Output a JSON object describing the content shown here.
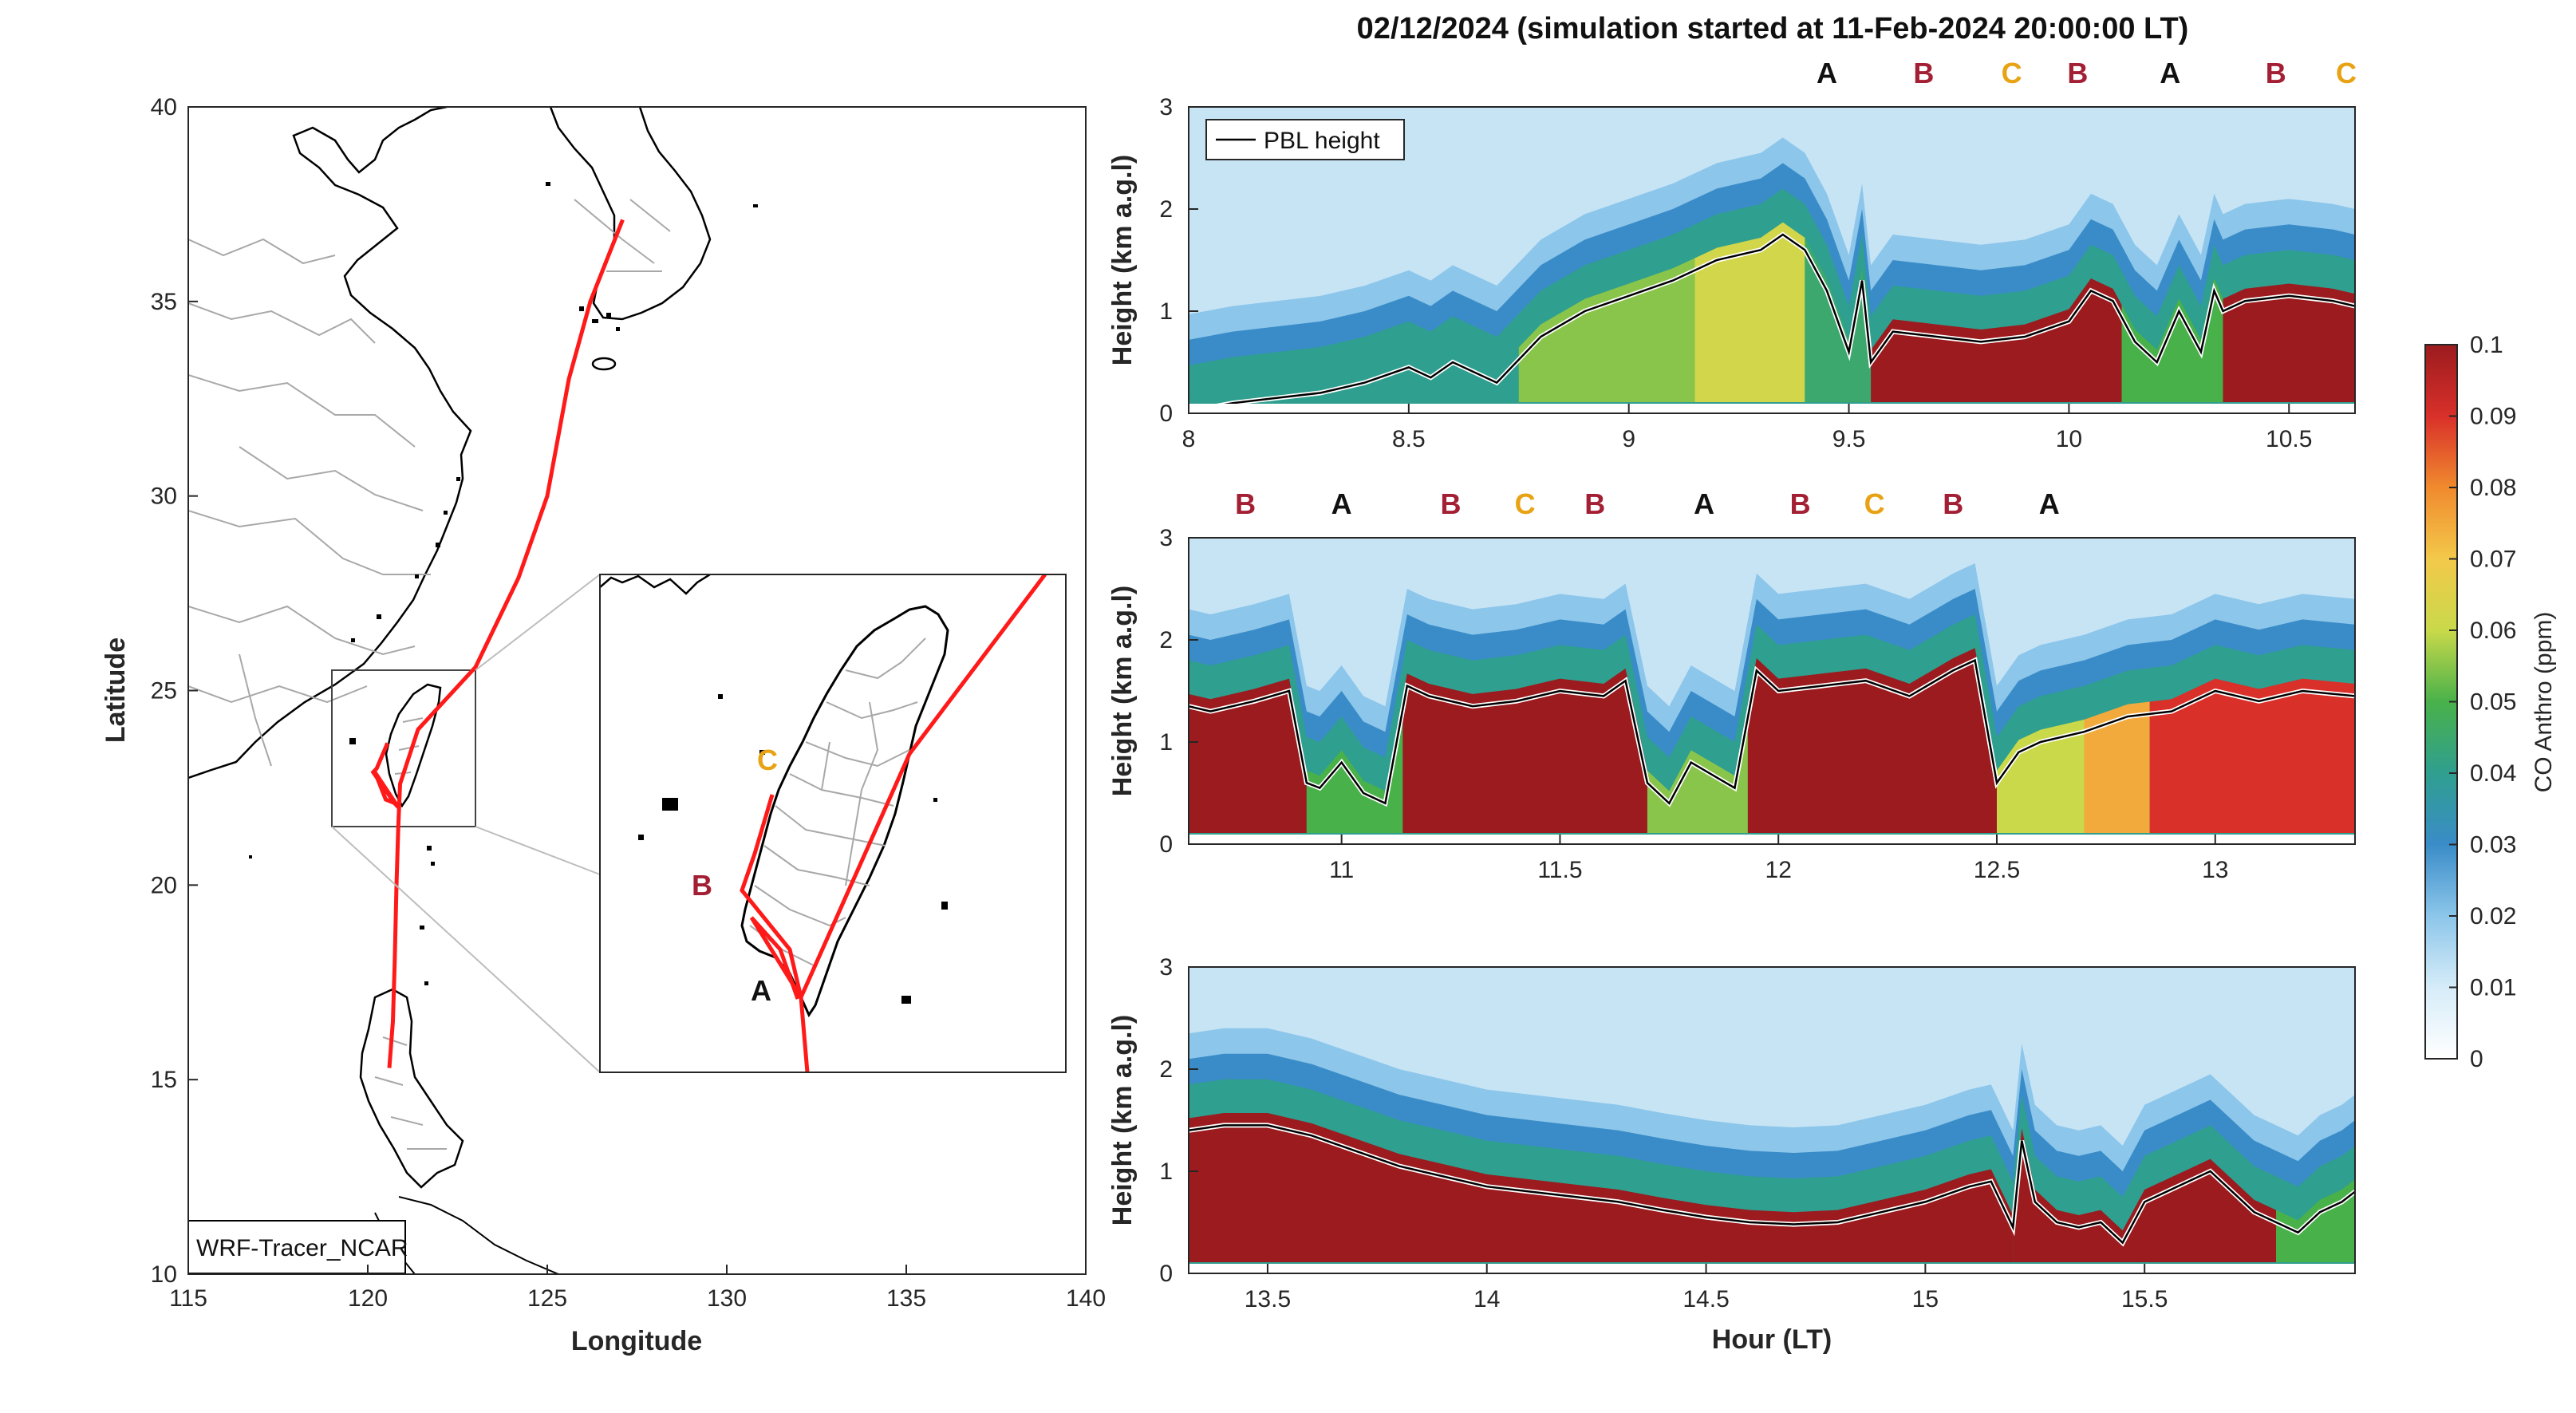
{
  "title": "02/12/2024 (simulation started at 11-Feb-2024 20:00:00 LT)",
  "colors": {
    "A": "#111111",
    "B": "#a31f34",
    "C": "#e8a315",
    "track": "#ff1a1a",
    "coast": "#000000",
    "border": "#a8a8a8"
  },
  "chart_data": [
    {
      "type": "map",
      "name": "trajectory-map",
      "xlabel": "Longitude",
      "ylabel": "Latitude",
      "xlim": [
        115,
        140
      ],
      "ylim": [
        10,
        40
      ],
      "xticks": [
        "115",
        "120",
        "125",
        "130",
        "135",
        "140"
      ],
      "yticks": [
        "10",
        "15",
        "20",
        "25",
        "30",
        "35",
        "40"
      ],
      "source_label": "WRF-Tracer_NCAR",
      "track": {
        "lon": [
          127.1,
          126.2,
          125.6,
          125.0,
          124.2,
          123.0,
          121.4,
          120.9,
          120.85,
          120.8,
          120.75,
          120.7,
          120.6
        ],
        "lat": [
          37.1,
          35.0,
          33.0,
          30.0,
          27.9,
          25.6,
          24.0,
          22.6,
          21.5,
          20.0,
          18.0,
          16.5,
          15.3
        ]
      },
      "inset": {
        "bounds": {
          "lon": [
            119,
            123
          ],
          "lat": [
            21.5,
            25.6
          ]
        },
        "track": {
          "lon": [
            123.0,
            121.4,
            120.9,
            120.85
          ],
          "lat": [
            25.6,
            24.0,
            22.6,
            21.5
          ]
        },
        "local_track": {
          "lon": [
            120.55,
            120.25,
            120.15,
            120.75,
            120.85,
            120.2,
            120.5,
            120.9
          ],
          "lat": [
            23.65,
            23.0,
            22.9,
            22.1,
            22.0,
            22.9,
            22.2,
            22.05
          ]
        },
        "markers": [
          {
            "label": "C",
            "lon": 120.6,
            "lat": 23.65
          },
          {
            "label": "B",
            "lon": 119.85,
            "lat": 22.85
          },
          {
            "label": "A",
            "lon": 120.45,
            "lat": 22.2
          }
        ]
      }
    },
    {
      "type": "heatmap",
      "name": "co-curtain-1",
      "xlabel": "",
      "ylabel": "Height (km a.g.l)",
      "xlim": [
        8,
        10.65
      ],
      "ylim": [
        0,
        3
      ],
      "xticks": [
        "8",
        "8.5",
        "9",
        "9.5",
        "10",
        "10.5"
      ],
      "yticks": [
        "0",
        "1",
        "2",
        "3"
      ],
      "legend": "PBL height",
      "markers": [
        {
          "label": "A",
          "x": 9.45
        },
        {
          "label": "B",
          "x": 9.67
        },
        {
          "label": "C",
          "x": 9.87
        },
        {
          "label": "B",
          "x": 10.02
        },
        {
          "label": "A",
          "x": 10.23
        },
        {
          "label": "B",
          "x": 10.47
        },
        {
          "label": "C",
          "x": 10.63
        }
      ],
      "pbl": {
        "x": [
          8.0,
          8.1,
          8.2,
          8.3,
          8.4,
          8.5,
          8.55,
          8.6,
          8.7,
          8.8,
          8.9,
          9.0,
          9.1,
          9.2,
          9.3,
          9.35,
          9.4,
          9.45,
          9.5,
          9.53,
          9.55,
          9.6,
          9.7,
          9.8,
          9.9,
          10.0,
          10.05,
          10.1,
          10.15,
          10.2,
          10.25,
          10.3,
          10.33,
          10.35,
          10.4,
          10.5,
          10.6,
          10.65
        ],
        "y": [
          0.02,
          0.1,
          0.15,
          0.2,
          0.3,
          0.45,
          0.35,
          0.5,
          0.3,
          0.75,
          1.0,
          1.15,
          1.3,
          1.5,
          1.6,
          1.75,
          1.6,
          1.2,
          0.6,
          1.3,
          0.5,
          0.8,
          0.75,
          0.7,
          0.75,
          0.9,
          1.2,
          1.1,
          0.7,
          0.5,
          1.0,
          0.6,
          1.2,
          1.0,
          1.1,
          1.15,
          1.1,
          1.05
        ]
      },
      "regimes": [
        {
          "x0": 8.0,
          "x1": 8.75,
          "value": 0.04
        },
        {
          "x0": 8.75,
          "x1": 9.15,
          "value": 0.055
        },
        {
          "x0": 9.15,
          "x1": 9.4,
          "value": 0.062
        },
        {
          "x0": 9.4,
          "x1": 9.55,
          "value": 0.045
        },
        {
          "x0": 9.55,
          "x1": 10.12,
          "value": 0.1
        },
        {
          "x0": 10.12,
          "x1": 10.35,
          "value": 0.05
        },
        {
          "x0": 10.35,
          "x1": 10.65,
          "value": 0.1
        }
      ]
    },
    {
      "type": "heatmap",
      "name": "co-curtain-2",
      "xlabel": "",
      "ylabel": "Height (km a.g.l)",
      "xlim": [
        10.65,
        13.32
      ],
      "ylim": [
        0,
        3
      ],
      "xticks": [
        "11",
        "11.5",
        "12",
        "12.5",
        "13"
      ],
      "yticks": [
        "0",
        "1",
        "2",
        "3"
      ],
      "markers": [
        {
          "label": "B",
          "x": 10.78
        },
        {
          "label": "A",
          "x": 11.0
        },
        {
          "label": "B",
          "x": 11.25
        },
        {
          "label": "C",
          "x": 11.42
        },
        {
          "label": "B",
          "x": 11.58
        },
        {
          "label": "A",
          "x": 11.83
        },
        {
          "label": "B",
          "x": 12.05
        },
        {
          "label": "C",
          "x": 12.22
        },
        {
          "label": "B",
          "x": 12.4
        },
        {
          "label": "A",
          "x": 12.62
        }
      ],
      "pbl": {
        "x": [
          10.65,
          10.7,
          10.8,
          10.88,
          10.92,
          10.95,
          11.0,
          11.05,
          11.1,
          11.15,
          11.2,
          11.3,
          11.4,
          11.5,
          11.6,
          11.65,
          11.7,
          11.75,
          11.8,
          11.9,
          11.95,
          12.0,
          12.1,
          12.2,
          12.3,
          12.4,
          12.45,
          12.5,
          12.55,
          12.6,
          12.7,
          12.8,
          12.9,
          13.0,
          13.1,
          13.2,
          13.32
        ],
        "y": [
          1.35,
          1.3,
          1.4,
          1.5,
          0.6,
          0.55,
          0.8,
          0.5,
          0.4,
          1.55,
          1.45,
          1.35,
          1.4,
          1.5,
          1.45,
          1.6,
          0.6,
          0.4,
          0.8,
          0.55,
          1.7,
          1.5,
          1.55,
          1.6,
          1.45,
          1.7,
          1.8,
          0.6,
          0.9,
          1.0,
          1.1,
          1.25,
          1.3,
          1.5,
          1.4,
          1.5,
          1.45
        ]
      },
      "regimes": [
        {
          "x0": 10.65,
          "x1": 10.92,
          "value": 0.1
        },
        {
          "x0": 10.92,
          "x1": 11.14,
          "value": 0.05
        },
        {
          "x0": 11.14,
          "x1": 11.7,
          "value": 0.1
        },
        {
          "x0": 11.7,
          "x1": 11.93,
          "value": 0.055
        },
        {
          "x0": 11.93,
          "x1": 12.5,
          "value": 0.1
        },
        {
          "x0": 12.5,
          "x1": 12.7,
          "value": 0.06
        },
        {
          "x0": 12.7,
          "x1": 12.85,
          "value": 0.075
        },
        {
          "x0": 12.85,
          "x1": 13.32,
          "value": 0.09
        }
      ]
    },
    {
      "type": "heatmap",
      "name": "co-curtain-3",
      "xlabel": "Hour (LT)",
      "ylabel": "Height (km a.g.l)",
      "xlim": [
        13.32,
        15.98
      ],
      "ylim": [
        0,
        3
      ],
      "xticks": [
        "13.5",
        "14",
        "14.5",
        "15",
        "15.5"
      ],
      "yticks": [
        "0",
        "1",
        "2",
        "3"
      ],
      "markers": [],
      "pbl": {
        "x": [
          13.32,
          13.4,
          13.5,
          13.6,
          13.7,
          13.8,
          13.9,
          14.0,
          14.1,
          14.2,
          14.3,
          14.4,
          14.5,
          14.6,
          14.7,
          14.8,
          14.9,
          15.0,
          15.1,
          15.15,
          15.2,
          15.22,
          15.25,
          15.3,
          15.35,
          15.4,
          15.45,
          15.5,
          15.55,
          15.6,
          15.65,
          15.7,
          15.75,
          15.8,
          15.85,
          15.9,
          15.95,
          15.98
        ],
        "y": [
          1.4,
          1.45,
          1.45,
          1.35,
          1.2,
          1.05,
          0.95,
          0.85,
          0.8,
          0.75,
          0.7,
          0.62,
          0.55,
          0.5,
          0.48,
          0.5,
          0.6,
          0.7,
          0.85,
          0.9,
          0.45,
          1.3,
          0.7,
          0.5,
          0.45,
          0.5,
          0.3,
          0.7,
          0.8,
          0.9,
          1.0,
          0.8,
          0.6,
          0.5,
          0.4,
          0.6,
          0.7,
          0.8
        ]
      },
      "regimes": [
        {
          "x0": 13.32,
          "x1": 15.2,
          "value": 0.1
        },
        {
          "x0": 15.2,
          "x1": 15.8,
          "value": 0.1
        },
        {
          "x0": 15.8,
          "x1": 15.98,
          "value": 0.05
        }
      ]
    },
    {
      "type": "colorbar",
      "name": "co-colorbar",
      "label": "CO Anthro (ppm)",
      "lim": [
        0,
        0.1
      ],
      "ticks": [
        "0",
        "0.01",
        "0.02",
        "0.03",
        "0.04",
        "0.05",
        "0.06",
        "0.07",
        "0.08",
        "0.09",
        "0.1"
      ],
      "stops": [
        "#ffffff",
        "#d6ecf8",
        "#8cc6ea",
        "#3a8cc8",
        "#2f9f8f",
        "#49b14a",
        "#c9d94a",
        "#f3c94a",
        "#f08a2e",
        "#d9302a",
        "#9b1b1e"
      ]
    }
  ]
}
